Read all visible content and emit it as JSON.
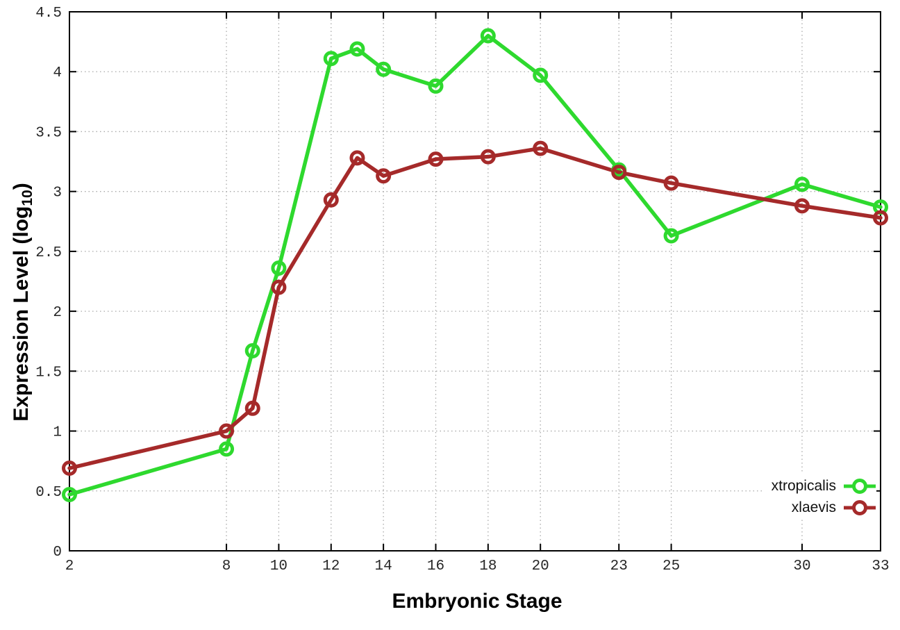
{
  "chart_data": {
    "type": "line",
    "title": "",
    "xlabel": "Embryonic Stage",
    "ylabel": "Expression Level (log10)",
    "ylabel_parts": {
      "prefix": "Expression Level (log",
      "sub": "10",
      "suffix": ")"
    },
    "x": [
      2,
      8,
      9,
      10,
      12,
      13,
      14,
      16,
      18,
      20,
      23,
      25,
      30,
      33
    ],
    "series": [
      {
        "name": "xtropicalis",
        "color": "#2ed92e",
        "values": [
          0.47,
          0.85,
          1.67,
          2.36,
          4.11,
          4.19,
          4.02,
          3.88,
          4.3,
          3.97,
          3.18,
          2.63,
          3.06,
          2.87
        ]
      },
      {
        "name": "xlaevis",
        "color": "#a52a2a",
        "values": [
          0.69,
          1.0,
          1.19,
          2.2,
          2.93,
          3.28,
          3.13,
          3.27,
          3.29,
          3.36,
          3.16,
          3.07,
          2.88,
          2.78
        ]
      }
    ],
    "xticks": [
      2,
      8,
      10,
      12,
      14,
      16,
      18,
      20,
      23,
      25,
      30,
      33
    ],
    "yticks": [
      0,
      0.5,
      1,
      1.5,
      2,
      2.5,
      3,
      3.5,
      4,
      4.5
    ],
    "xlim": [
      2,
      33
    ],
    "ylim": [
      0,
      4.5
    ],
    "grid": true,
    "legend_position": "bottom-right",
    "marker": "open-circle",
    "colors": {
      "border": "#000000",
      "grid": "#a8a8a8",
      "tick_text": "#262626"
    }
  }
}
